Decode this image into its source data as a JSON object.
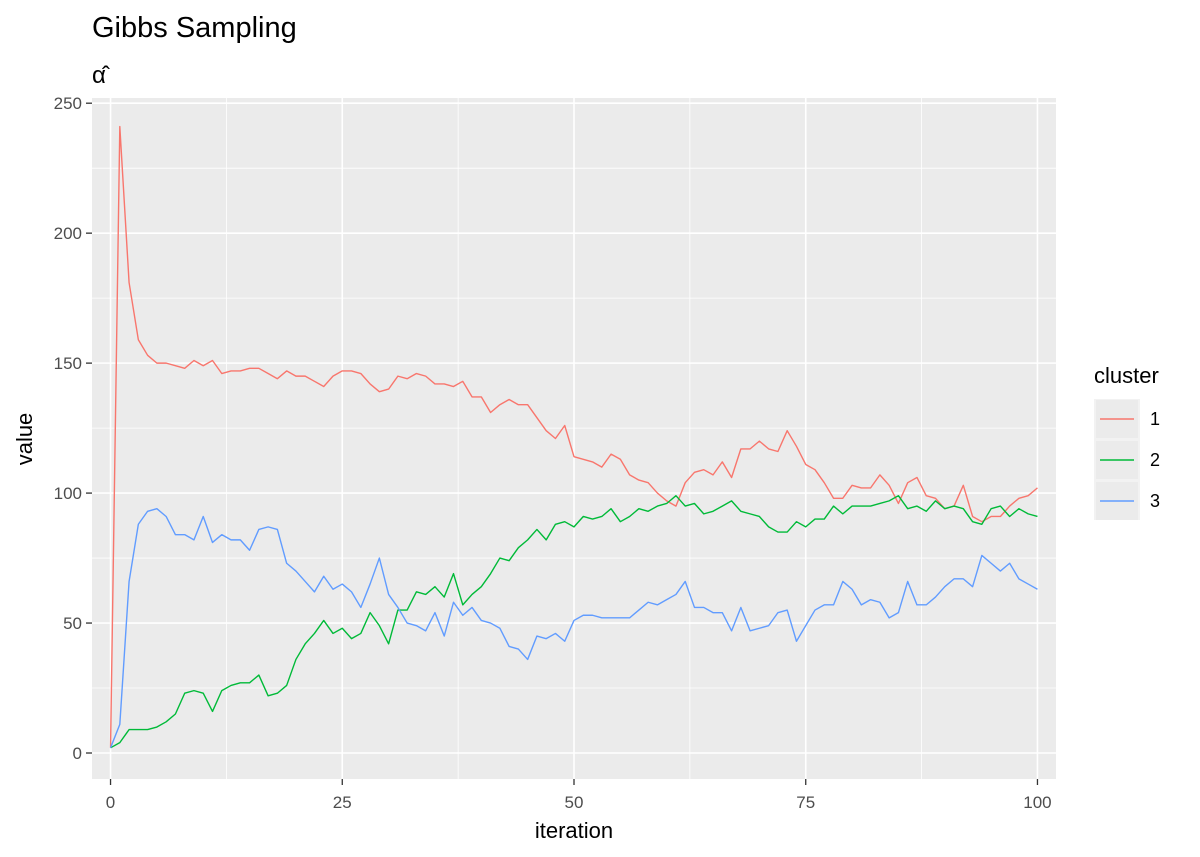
{
  "chart_data": {
    "type": "line",
    "title": "Gibbs Sampling",
    "subtitle": "α̂",
    "xlabel": "iteration",
    "ylabel": "value",
    "xlim": [
      -2,
      102
    ],
    "ylim": [
      -10,
      252
    ],
    "xticks": [
      0,
      25,
      50,
      75,
      100
    ],
    "yticks": [
      0,
      50,
      100,
      150,
      200,
      250
    ],
    "grid": true,
    "legend": {
      "title": "cluster",
      "position": "right"
    },
    "x": [
      0,
      1,
      2,
      3,
      4,
      5,
      6,
      7,
      8,
      9,
      10,
      11,
      12,
      13,
      14,
      15,
      16,
      17,
      18,
      19,
      20,
      21,
      22,
      23,
      24,
      25,
      26,
      27,
      28,
      29,
      30,
      31,
      32,
      33,
      34,
      35,
      36,
      37,
      38,
      39,
      40,
      41,
      42,
      43,
      44,
      45,
      46,
      47,
      48,
      49,
      50,
      51,
      52,
      53,
      54,
      55,
      56,
      57,
      58,
      59,
      60,
      61,
      62,
      63,
      64,
      65,
      66,
      67,
      68,
      69,
      70,
      71,
      72,
      73,
      74,
      75,
      76,
      77,
      78,
      79,
      80,
      81,
      82,
      83,
      84,
      85,
      86,
      87,
      88,
      89,
      90,
      91,
      92,
      93,
      94,
      95,
      96,
      97,
      98,
      99,
      100
    ],
    "series": [
      {
        "name": "1",
        "color": "#F8766D",
        "values": [
          2,
          241,
          181,
          159,
          153,
          150,
          150,
          149,
          148,
          151,
          149,
          151,
          146,
          147,
          147,
          148,
          148,
          146,
          144,
          147,
          145,
          145,
          143,
          141,
          145,
          147,
          147,
          146,
          142,
          139,
          140,
          145,
          144,
          146,
          145,
          142,
          142,
          141,
          143,
          137,
          137,
          131,
          134,
          136,
          134,
          134,
          129,
          124,
          121,
          126,
          114,
          113,
          112,
          110,
          115,
          113,
          107,
          105,
          104,
          100,
          97,
          95,
          104,
          108,
          109,
          107,
          112,
          106,
          117,
          117,
          120,
          117,
          116,
          124,
          118,
          111,
          109,
          104,
          98,
          98,
          103,
          102,
          102,
          107,
          103,
          96,
          104,
          106,
          99,
          98,
          94,
          95,
          103,
          91,
          89,
          91,
          91,
          95,
          98,
          99,
          102
        ]
      },
      {
        "name": "2",
        "color": "#00BA38",
        "values": [
          2,
          4,
          9,
          9,
          9,
          10,
          12,
          15,
          23,
          24,
          23,
          16,
          24,
          26,
          27,
          27,
          30,
          22,
          23,
          26,
          36,
          42,
          46,
          51,
          46,
          48,
          44,
          46,
          54,
          49,
          42,
          55,
          55,
          62,
          61,
          64,
          60,
          69,
          57,
          61,
          64,
          69,
          75,
          74,
          79,
          82,
          86,
          82,
          88,
          89,
          87,
          91,
          90,
          91,
          94,
          89,
          91,
          94,
          93,
          95,
          96,
          99,
          95,
          96,
          92,
          93,
          95,
          97,
          93,
          92,
          91,
          87,
          85,
          85,
          89,
          87,
          90,
          90,
          95,
          92,
          95,
          95,
          95,
          96,
          97,
          99,
          94,
          95,
          93,
          97,
          94,
          95,
          94,
          89,
          88,
          94,
          95,
          91,
          94,
          92,
          91
        ]
      },
      {
        "name": "3",
        "color": "#619CFF",
        "values": [
          2,
          11,
          66,
          88,
          93,
          94,
          91,
          84,
          84,
          82,
          91,
          81,
          84,
          82,
          82,
          78,
          86,
          87,
          86,
          73,
          70,
          66,
          62,
          68,
          63,
          65,
          62,
          56,
          65,
          75,
          61,
          56,
          50,
          49,
          47,
          54,
          45,
          58,
          53,
          56,
          51,
          50,
          48,
          41,
          40,
          36,
          45,
          44,
          46,
          43,
          51,
          53,
          53,
          52,
          52,
          52,
          52,
          55,
          58,
          57,
          59,
          61,
          66,
          56,
          56,
          54,
          54,
          47,
          56,
          47,
          48,
          49,
          54,
          55,
          43,
          49,
          55,
          57,
          57,
          66,
          63,
          57,
          59,
          58,
          52,
          54,
          66,
          57,
          57,
          60,
          64,
          67,
          67,
          64,
          76,
          73,
          70,
          73,
          67,
          65,
          63
        ]
      }
    ]
  }
}
